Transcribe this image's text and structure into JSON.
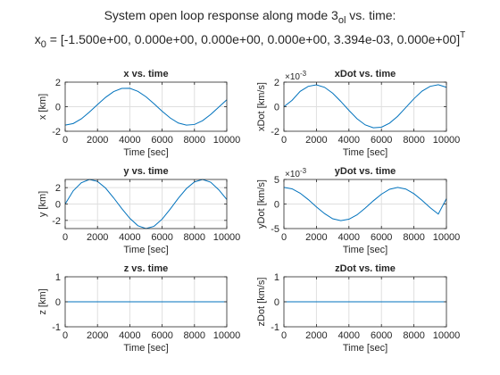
{
  "figure": {
    "title_line1": "System open loop response along mode 3",
    "title_line1_sub": "ol",
    "title_line1_tail": " vs. time:",
    "title_line2": "x",
    "title_line2_sub": "0",
    "title_line2_main": " = [-1.500e+00, 0.000e+00, 0.000e+00, 0.000e+00, 3.394e-03, 0.000e+00]",
    "title_line2_sup": "T"
  },
  "colors": {
    "series": "#0072bd",
    "grid": "#dfdfdf",
    "axis": "#262626"
  },
  "chart_data": [
    {
      "id": "x",
      "type": "line",
      "title": "x vs. time",
      "xlabel": "Time [sec]",
      "ylabel": "x [km]",
      "xlim": [
        0,
        10000
      ],
      "ylim": [
        -2,
        2
      ],
      "xticks": [
        0,
        2000,
        4000,
        6000,
        8000,
        10000
      ],
      "yticks": [
        -2,
        0,
        2
      ],
      "exponent_label": "",
      "grid": true,
      "series": [
        {
          "x": [
            0,
            500,
            1000,
            1500,
            2000,
            2500,
            3000,
            3500,
            4000,
            4500,
            5000,
            5500,
            6000,
            6500,
            7000,
            7500,
            8000,
            8500,
            9000,
            9500,
            10000
          ],
          "y": [
            -1.5,
            -1.37,
            -0.99,
            -0.44,
            0.17,
            0.76,
            1.23,
            1.49,
            1.5,
            1.25,
            0.81,
            0.24,
            -0.37,
            -0.92,
            -1.33,
            -1.5,
            -1.45,
            -1.14,
            -0.64,
            -0.04,
            0.56
          ]
        }
      ]
    },
    {
      "id": "xDot",
      "type": "line",
      "title": "xDot vs. time",
      "xlabel": "Time [sec]",
      "ylabel": "xDot [km/s]",
      "xlim": [
        0,
        10000
      ],
      "ylim": [
        -2,
        2
      ],
      "xticks": [
        0,
        2000,
        4000,
        6000,
        8000,
        10000
      ],
      "yticks": [
        -2,
        0,
        2
      ],
      "exponent_label": "×10",
      "exponent_power": "-3",
      "grid": true,
      "series": [
        {
          "x": [
            0,
            500,
            1000,
            1500,
            2000,
            2500,
            3000,
            3500,
            4000,
            4500,
            5000,
            5500,
            6000,
            6500,
            7000,
            7500,
            8000,
            8500,
            9000,
            9500,
            10000
          ],
          "y": [
            0,
            0.52,
            1.25,
            1.66,
            1.78,
            1.58,
            1.1,
            0.43,
            -0.3,
            -0.98,
            -1.48,
            -1.72,
            -1.67,
            -1.34,
            -0.78,
            -0.07,
            0.65,
            1.27,
            1.66,
            1.79,
            1.58
          ]
        }
      ]
    },
    {
      "id": "y",
      "type": "line",
      "title": "y vs. time",
      "xlabel": "Time [sec]",
      "ylabel": "y [km]",
      "xlim": [
        0,
        10000
      ],
      "ylim": [
        -3,
        3
      ],
      "xticks": [
        0,
        2000,
        4000,
        6000,
        8000,
        10000
      ],
      "yticks": [
        -2,
        0,
        2
      ],
      "exponent_label": "",
      "grid": true,
      "series": [
        {
          "x": [
            0,
            500,
            1000,
            1500,
            2000,
            2500,
            3000,
            3500,
            4000,
            4500,
            5000,
            5500,
            6000,
            6500,
            7000,
            7500,
            8000,
            8500,
            9000,
            9500,
            10000
          ],
          "y": [
            0,
            1.62,
            2.6,
            3.0,
            2.76,
            1.95,
            0.75,
            -0.55,
            -1.75,
            -2.65,
            -3.0,
            -2.72,
            -1.85,
            -0.62,
            0.7,
            1.88,
            2.7,
            3.0,
            2.67,
            1.75,
            0.55
          ]
        }
      ]
    },
    {
      "id": "yDot",
      "type": "line",
      "title": "yDot vs. time",
      "xlabel": "Time [sec]",
      "ylabel": "yDot [km/s]",
      "xlim": [
        0,
        10000
      ],
      "ylim": [
        -5,
        5
      ],
      "xticks": [
        0,
        2000,
        4000,
        6000,
        8000,
        10000
      ],
      "yticks": [
        -5,
        0,
        5
      ],
      "exponent_label": "×10",
      "exponent_power": "-3",
      "grid": true,
      "series": [
        {
          "x": [
            0,
            500,
            1000,
            1500,
            2000,
            2500,
            3000,
            3500,
            4000,
            4500,
            5000,
            5500,
            6000,
            6500,
            7000,
            7500,
            8000,
            8500,
            9000,
            9500,
            10000
          ],
          "y": [
            3.394,
            3.1,
            2.2,
            0.9,
            -0.6,
            -1.95,
            -3.0,
            -3.38,
            -3.1,
            -2.2,
            -0.85,
            0.65,
            2.0,
            3.0,
            3.39,
            3.05,
            2.1,
            0.75,
            -0.75,
            -2.05,
            1.1
          ]
        }
      ]
    },
    {
      "id": "z",
      "type": "line",
      "title": "z vs. time",
      "xlabel": "Time [sec]",
      "ylabel": "z [km]",
      "xlim": [
        0,
        10000
      ],
      "ylim": [
        -1,
        1
      ],
      "xticks": [
        0,
        2000,
        4000,
        6000,
        8000,
        10000
      ],
      "yticks": [
        -1,
        0,
        1
      ],
      "exponent_label": "",
      "grid": true,
      "series": [
        {
          "x": [
            0,
            10000
          ],
          "y": [
            0,
            0
          ]
        }
      ]
    },
    {
      "id": "zDot",
      "type": "line",
      "title": "zDot vs. time",
      "xlabel": "Time [sec]",
      "ylabel": "zDot [km/s]",
      "xlim": [
        0,
        10000
      ],
      "ylim": [
        -1,
        1
      ],
      "xticks": [
        0,
        2000,
        4000,
        6000,
        8000,
        10000
      ],
      "yticks": [
        -1,
        0,
        1
      ],
      "exponent_label": "",
      "grid": true,
      "series": [
        {
          "x": [
            0,
            10000
          ],
          "y": [
            0,
            0
          ]
        }
      ]
    }
  ]
}
